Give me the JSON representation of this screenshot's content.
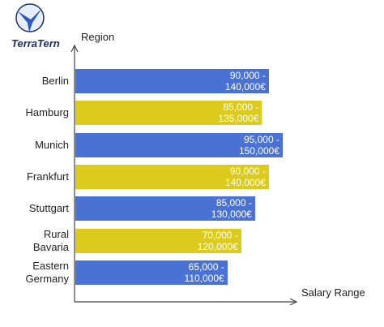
{
  "logo": {
    "text": "TerraTern"
  },
  "chart_data": {
    "type": "bar",
    "orientation": "horizontal",
    "y_label": "Region",
    "x_label": "Salary Range",
    "categories": [
      "Berlin",
      "Hamburg",
      "Munich",
      "Frankfurt",
      "Stuttgart",
      "Rural Bavaria",
      "Eastern Germany"
    ],
    "low": [
      90000,
      85000,
      95000,
      90000,
      85000,
      70000,
      65000
    ],
    "values": [
      140000,
      135000,
      150000,
      140000,
      130000,
      120000,
      110000
    ],
    "value_labels": [
      "90,000 - 140,000€",
      "85,000 - 135,000€",
      "95,000 - 150,000€",
      "90,000 - 140,000€",
      "85,000 - 130,000€",
      "70,000 - 120,000€",
      "65,000 - 110,000€"
    ],
    "colors": [
      "#4a72d5",
      "#dccb1c",
      "#4a72d5",
      "#dccb1c",
      "#4a72d5",
      "#dccb1c",
      "#4a72d5"
    ]
  }
}
